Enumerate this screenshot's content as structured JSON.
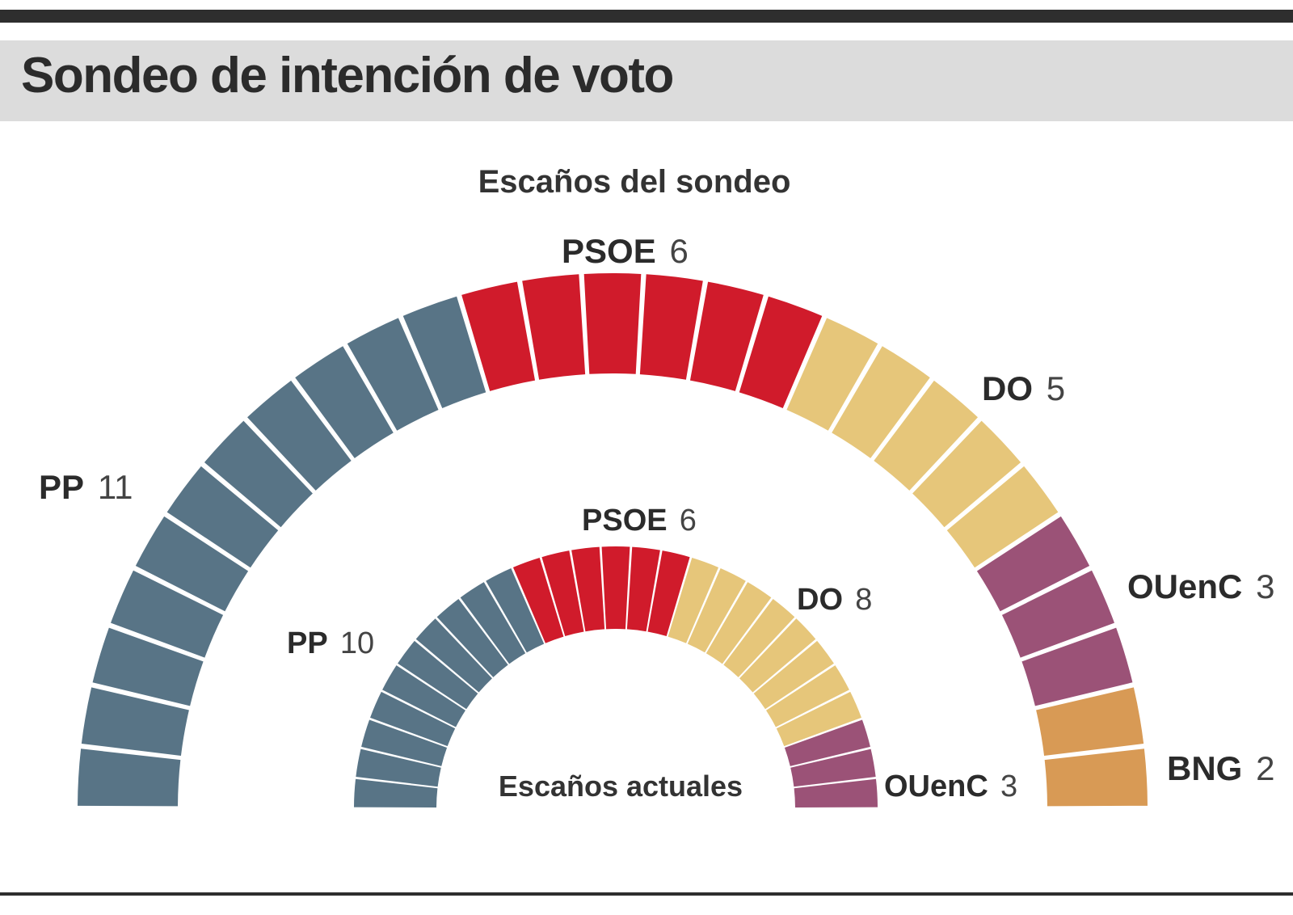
{
  "header": {
    "title": "Sondeo de intención de voto"
  },
  "chart_data": [
    {
      "type": "hemicycle",
      "title": "Escaños del sondeo",
      "parties": [
        {
          "name": "PP",
          "seats": 11,
          "color": "#587486"
        },
        {
          "name": "PSOE",
          "seats": 6,
          "color": "#d01b2b"
        },
        {
          "name": "DO",
          "seats": 5,
          "color": "#e6c67a"
        },
        {
          "name": "OUenC",
          "seats": 3,
          "color": "#9b5277"
        },
        {
          "name": "BNG",
          "seats": 2,
          "color": "#d89a55"
        }
      ],
      "total_seats": 27
    },
    {
      "type": "hemicycle",
      "title": "Escaños actuales",
      "parties": [
        {
          "name": "PP",
          "seats": 10,
          "color": "#587486"
        },
        {
          "name": "PSOE",
          "seats": 6,
          "color": "#d01b2b"
        },
        {
          "name": "DO",
          "seats": 8,
          "color": "#e6c67a"
        },
        {
          "name": "OUenC",
          "seats": 3,
          "color": "#9b5277"
        }
      ],
      "total_seats": 27
    }
  ]
}
